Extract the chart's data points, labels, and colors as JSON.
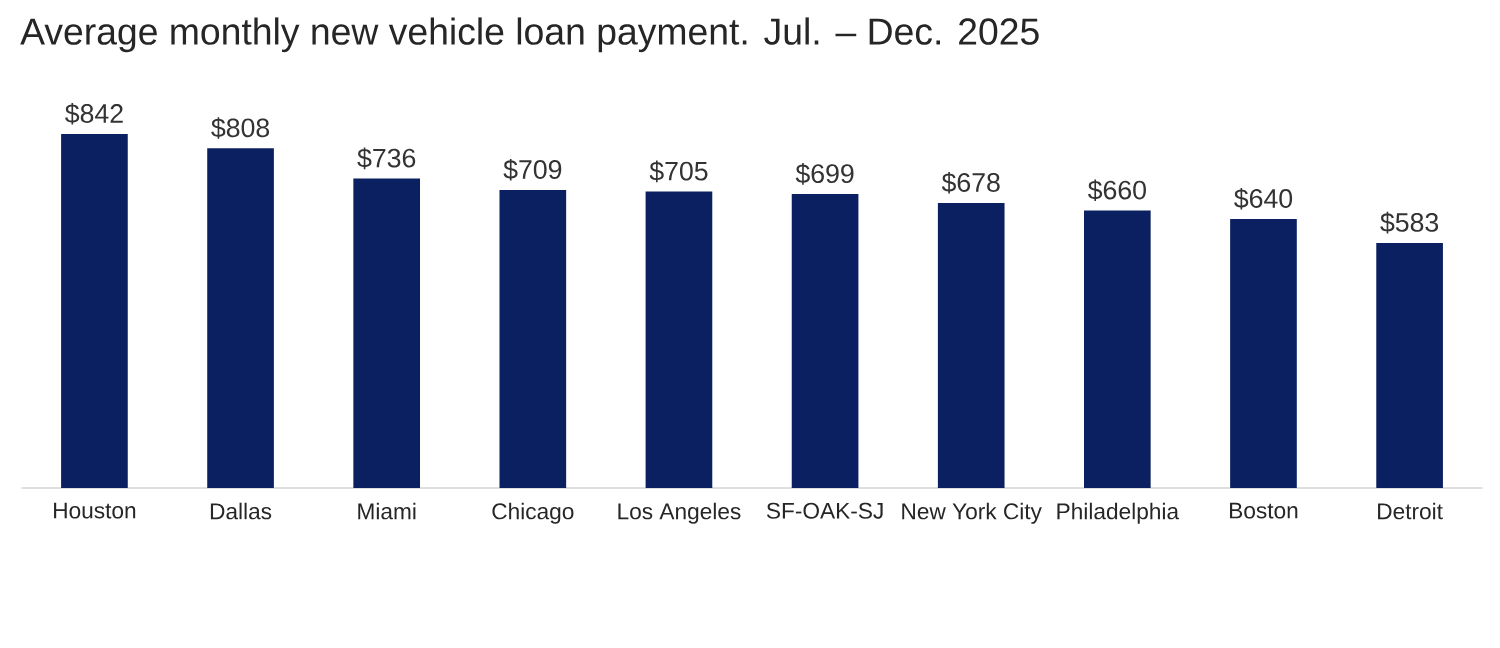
{
  "chart_data": {
    "type": "bar",
    "title": "Average monthly new vehicle loan payment.  Jul. – Dec. 2025",
    "categories": [
      "Houston",
      "Dallas",
      "Miami",
      "Chicago",
      "Los Angeles",
      "SF-OAK-SJ",
      "New York City",
      "Philadelphia",
      "Boston",
      "Detroit"
    ],
    "values": [
      842,
      808,
      736,
      709,
      705,
      699,
      678,
      660,
      640,
      583
    ],
    "value_labels": [
      "$842",
      "$808",
      "$736",
      "$709",
      "$705",
      "$699",
      "$678",
      "$660",
      "$640",
      "$583"
    ],
    "color": "#0b2060"
  }
}
